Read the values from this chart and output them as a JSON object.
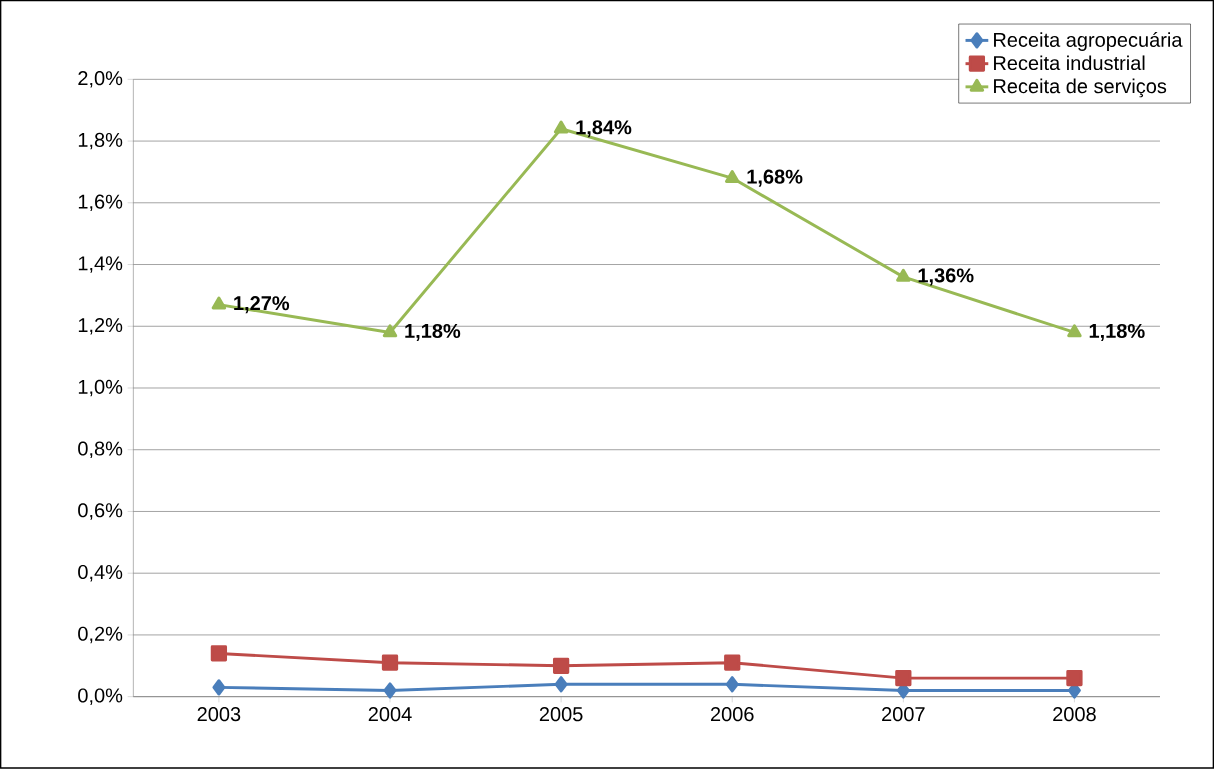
{
  "chart_data": {
    "type": "line",
    "categories": [
      "2003",
      "2004",
      "2005",
      "2006",
      "2007",
      "2008"
    ],
    "series": [
      {
        "name": "Receita agropecuária",
        "color": "#4a7ebb",
        "marker": "diamond",
        "values": [
          0.03,
          0.02,
          0.04,
          0.04,
          0.02,
          0.02
        ]
      },
      {
        "name": "Receita industrial",
        "color": "#be4b48",
        "marker": "square",
        "values": [
          0.14,
          0.11,
          0.1,
          0.11,
          0.06,
          0.06
        ]
      },
      {
        "name": "Receita de serviços",
        "color": "#98b954",
        "marker": "triangle",
        "values": [
          1.27,
          1.18,
          1.84,
          1.68,
          1.36,
          1.18
        ],
        "value_labels": [
          "1,27%",
          "1,18%",
          "1,84%",
          "1,68%",
          "1,36%",
          "1,18%"
        ]
      }
    ],
    "ylim": [
      0,
      2.0
    ],
    "yticks": [
      {
        "value": 0,
        "label": "0,0%"
      },
      {
        "value": 0.2,
        "label": "0,2%"
      },
      {
        "value": 0.4,
        "label": "0,4%"
      },
      {
        "value": 0.6,
        "label": "0,6%"
      },
      {
        "value": 0.8,
        "label": "0,8%"
      },
      {
        "value": 1.0,
        "label": "1,0%"
      },
      {
        "value": 1.2,
        "label": "1,2%"
      },
      {
        "value": 1.4,
        "label": "1,4%"
      },
      {
        "value": 1.6,
        "label": "1,6%"
      },
      {
        "value": 1.8,
        "label": "1,8%"
      },
      {
        "value": 2.0,
        "label": "2,0%"
      }
    ],
    "grid": "y",
    "legend": "top right",
    "line_style": "solid"
  }
}
